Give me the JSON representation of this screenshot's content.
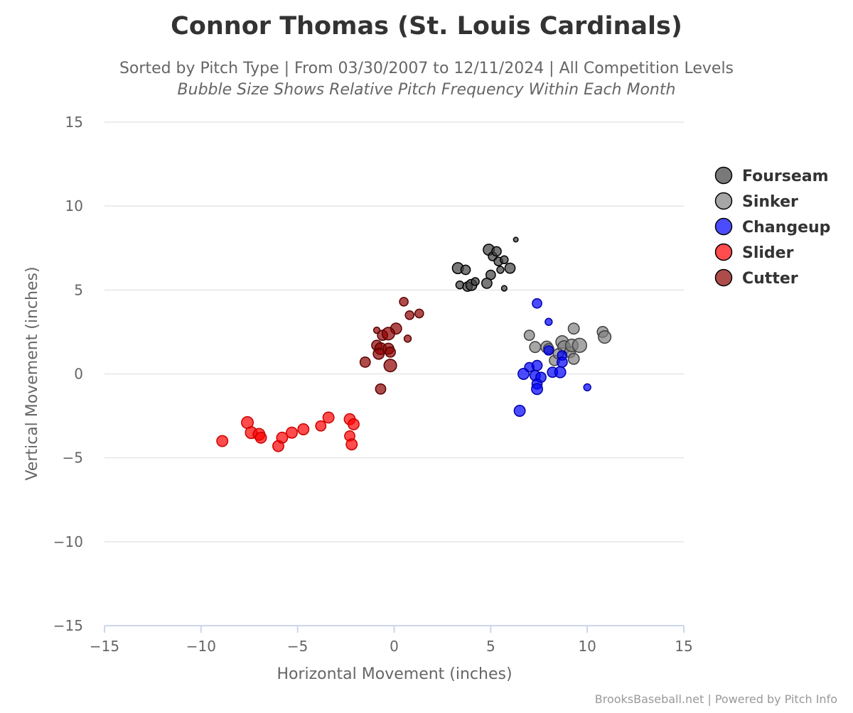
{
  "chart_data": {
    "type": "scatter",
    "title": "Connor Thomas (St. Louis Cardinals)",
    "subtitle": "Sorted by Pitch Type | From 03/30/2007 to 12/11/2024 | All Competition Levels",
    "subtitle2": "Bubble Size Shows Relative Pitch Frequency Within Each Month",
    "xlabel": "Horizontal Movement (inches)",
    "ylabel": "Vertical Movement (inches)",
    "xlim": [
      -15,
      15
    ],
    "ylim": [
      -15,
      15
    ],
    "xticks": [
      -15,
      -10,
      -5,
      0,
      5,
      10,
      15
    ],
    "yticks": [
      -15,
      -10,
      -5,
      0,
      5,
      10,
      15
    ],
    "xtick_labels": [
      "−15",
      "−10",
      "−5",
      "0",
      "5",
      "10",
      "15"
    ],
    "ytick_labels": [
      "−15",
      "−10",
      "−5",
      "0",
      "5",
      "10",
      "15"
    ],
    "grid": true,
    "legend_position": "right",
    "credit": "BrooksBaseball.net | Powered by Pitch Info",
    "series": [
      {
        "name": "Fourseam",
        "color": "#404040",
        "stroke": "#000000",
        "points": [
          [
            3.3,
            6.3,
            1.4
          ],
          [
            3.7,
            6.2,
            1.2
          ],
          [
            4.9,
            7.4,
            1.4
          ],
          [
            5.1,
            7.0,
            1.1
          ],
          [
            5.3,
            7.3,
            1.2
          ],
          [
            6.3,
            8.0,
            0.6
          ],
          [
            5.4,
            6.7,
            1.1
          ],
          [
            5.7,
            6.8,
            1.0
          ],
          [
            5.5,
            6.2,
            0.9
          ],
          [
            6.0,
            6.3,
            1.3
          ],
          [
            5.0,
            5.9,
            1.2
          ],
          [
            3.4,
            5.3,
            1.0
          ],
          [
            3.8,
            5.2,
            1.2
          ],
          [
            4.0,
            5.3,
            1.4
          ],
          [
            4.2,
            5.5,
            1.0
          ],
          [
            4.8,
            5.4,
            1.3
          ],
          [
            5.7,
            5.1,
            0.7
          ]
        ]
      },
      {
        "name": "Sinker",
        "color": "#808080",
        "stroke": "#404040",
        "points": [
          [
            7.0,
            2.3,
            1.3
          ],
          [
            7.3,
            1.6,
            1.4
          ],
          [
            7.9,
            1.6,
            1.5
          ],
          [
            8.0,
            1.5,
            1.3
          ],
          [
            8.7,
            1.9,
            1.6
          ],
          [
            8.8,
            1.6,
            1.6
          ],
          [
            9.1,
            1.3,
            1.4
          ],
          [
            9.2,
            1.7,
            1.6
          ],
          [
            9.6,
            1.7,
            1.8
          ],
          [
            9.3,
            2.7,
            1.4
          ],
          [
            10.8,
            2.5,
            1.4
          ],
          [
            10.9,
            2.2,
            1.6
          ],
          [
            8.3,
            0.8,
            1.3
          ],
          [
            9.3,
            0.9,
            1.4
          ],
          [
            8.5,
            1.2,
            1.3
          ]
        ]
      },
      {
        "name": "Changeup",
        "color": "#0000ff",
        "stroke": "#0000aa",
        "points": [
          [
            7.4,
            4.2,
            1.2
          ],
          [
            8.0,
            3.1,
            0.9
          ],
          [
            8.0,
            1.4,
            1.2
          ],
          [
            8.7,
            1.1,
            1.2
          ],
          [
            8.7,
            0.7,
            1.3
          ],
          [
            7.0,
            0.4,
            1.2
          ],
          [
            7.4,
            0.5,
            1.3
          ],
          [
            6.7,
            0.0,
            1.4
          ],
          [
            7.3,
            -0.1,
            1.3
          ],
          [
            7.6,
            -0.2,
            1.3
          ],
          [
            8.2,
            0.1,
            1.3
          ],
          [
            8.6,
            0.1,
            1.4
          ],
          [
            7.4,
            -0.6,
            1.3
          ],
          [
            7.4,
            -0.9,
            1.4
          ],
          [
            10.0,
            -0.8,
            0.9
          ],
          [
            6.5,
            -2.2,
            1.4
          ]
        ]
      },
      {
        "name": "Slider",
        "color": "#ff0000",
        "stroke": "#cc0000",
        "points": [
          [
            -8.9,
            -4.0,
            1.4
          ],
          [
            -7.6,
            -2.9,
            1.5
          ],
          [
            -7.4,
            -3.5,
            1.5
          ],
          [
            -7.0,
            -3.6,
            1.5
          ],
          [
            -6.9,
            -3.8,
            1.4
          ],
          [
            -6.0,
            -4.3,
            1.4
          ],
          [
            -5.8,
            -3.8,
            1.4
          ],
          [
            -5.3,
            -3.5,
            1.4
          ],
          [
            -4.7,
            -3.3,
            1.4
          ],
          [
            -3.8,
            -3.1,
            1.3
          ],
          [
            -3.4,
            -2.6,
            1.4
          ],
          [
            -2.3,
            -2.7,
            1.4
          ],
          [
            -2.1,
            -3.0,
            1.4
          ],
          [
            -2.3,
            -3.7,
            1.3
          ],
          [
            -2.2,
            -4.2,
            1.4
          ]
        ]
      },
      {
        "name": "Cutter",
        "color": "#8b0000",
        "stroke": "#5a0000",
        "points": [
          [
            0.5,
            4.3,
            1.1
          ],
          [
            1.3,
            3.6,
            1.1
          ],
          [
            0.8,
            3.5,
            1.1
          ],
          [
            0.1,
            2.7,
            1.4
          ],
          [
            -0.9,
            2.6,
            0.8
          ],
          [
            -0.6,
            2.3,
            1.3
          ],
          [
            -0.3,
            2.4,
            1.6
          ],
          [
            0.7,
            2.1,
            0.9
          ],
          [
            -0.9,
            1.7,
            1.3
          ],
          [
            -0.7,
            1.5,
            1.5
          ],
          [
            -0.3,
            1.5,
            1.4
          ],
          [
            -0.8,
            1.2,
            1.4
          ],
          [
            -0.2,
            1.3,
            1.3
          ],
          [
            -1.5,
            0.7,
            1.3
          ],
          [
            -0.2,
            0.5,
            1.6
          ],
          [
            -0.7,
            -0.9,
            1.3
          ]
        ]
      }
    ]
  }
}
